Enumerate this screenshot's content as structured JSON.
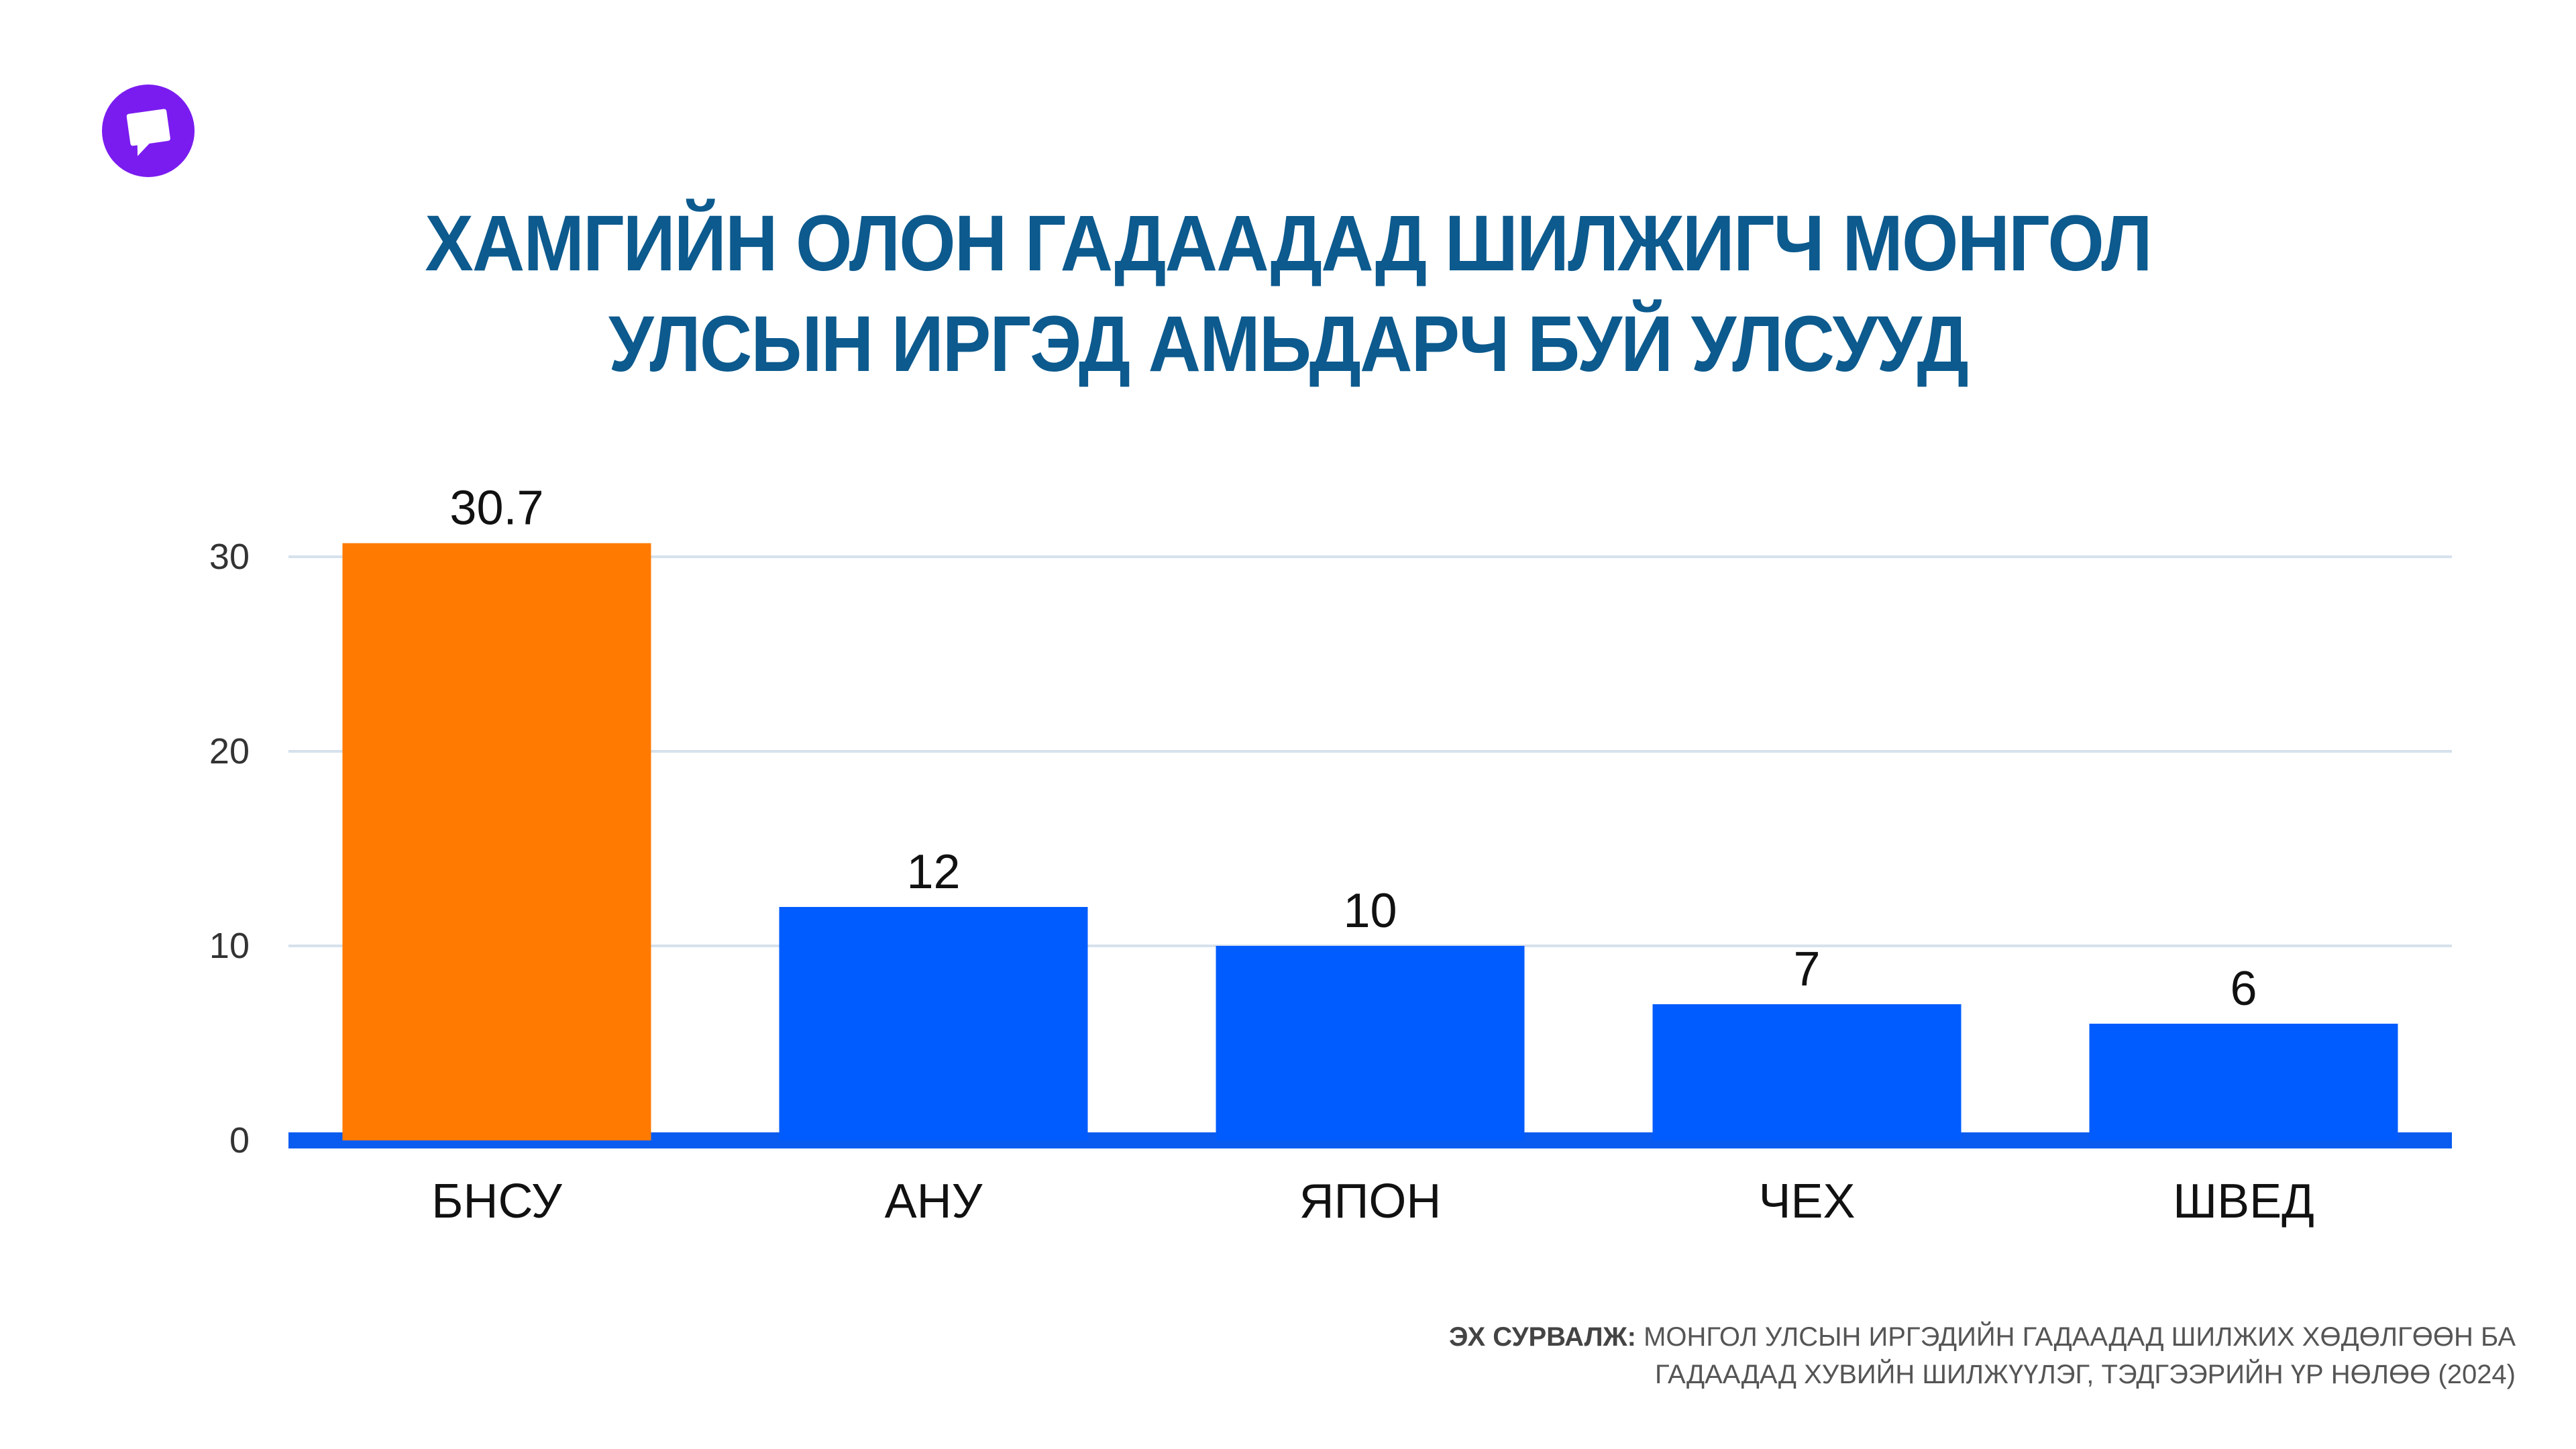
{
  "colors": {
    "title": "#0c5a8e",
    "highlight_bar": "#ff7a00",
    "bar": "#005cff",
    "baseline": "#0a5cf0",
    "grid": "#d6e1ec",
    "logo": "#7a1cf0"
  },
  "logo": {
    "icon": "speech-bubble-icon"
  },
  "title_lines": [
    "ХАМГИЙН ОЛОН ГАДААДАД ШИЛЖИГЧ МОНГОЛ",
    "УЛСЫН ИРГЭД АМЬДАРЧ БУЙ УЛСУУД"
  ],
  "source": {
    "label": "ЭХ СУРВАЛЖ:",
    "line1": "МОНГОЛ УЛСЫН ИРГЭДИЙН ГАДААДАД ШИЛЖИХ ХӨДӨЛГӨӨН БА",
    "line2": "ГАДААДАД ХУВИЙН ШИЛЖҮҮЛЭГ, ТЭДГЭЭРИЙН ҮР НӨЛӨӨ (2024)"
  },
  "chart_data": {
    "type": "bar",
    "categories": [
      "БНСУ",
      "АНУ",
      "ЯПОН",
      "ЧЕХ",
      "ШВЕД"
    ],
    "values": [
      30.7,
      12,
      10,
      7,
      6
    ],
    "value_labels": [
      "30.7",
      "12",
      "10",
      "7",
      "6"
    ],
    "highlight_index": 0,
    "yticks": [
      "0",
      "10",
      "20",
      "30"
    ],
    "ylim": [
      0,
      32
    ],
    "grid": true,
    "legend": "none"
  }
}
